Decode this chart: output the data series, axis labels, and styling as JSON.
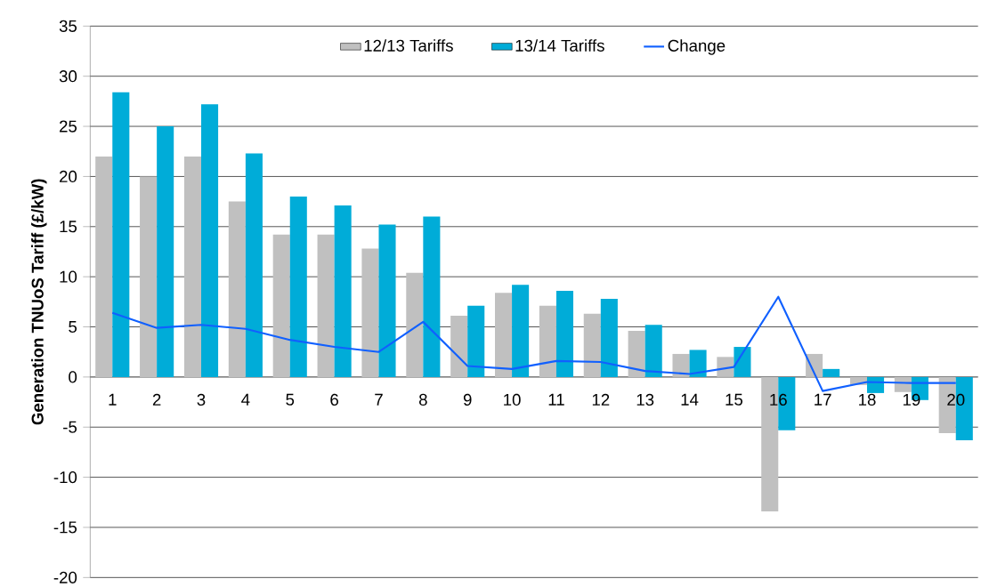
{
  "chart_data": {
    "type": "bar",
    "ylabel": "Generation TNUoS Tariff (£/kW)",
    "categories": [
      "1",
      "2",
      "3",
      "4",
      "5",
      "6",
      "7",
      "8",
      "9",
      "10",
      "11",
      "12",
      "13",
      "14",
      "15",
      "16",
      "17",
      "18",
      "19",
      "20"
    ],
    "series": [
      {
        "name": "12/13 Tariffs",
        "color": "#c0c0c0",
        "values": [
          22,
          20,
          22,
          17.5,
          14.2,
          14.2,
          12.8,
          10.4,
          6.1,
          8.4,
          7.1,
          6.3,
          4.6,
          2.3,
          2.0,
          -13.4,
          2.3,
          -0.8,
          -1.5,
          -5.6
        ]
      },
      {
        "name": "13/14 Tariffs",
        "color": "#00acd8",
        "values": [
          28.4,
          25,
          27.2,
          22.3,
          18,
          17.1,
          15.2,
          16,
          7.1,
          9.2,
          8.6,
          7.8,
          5.2,
          2.7,
          3.0,
          -5.3,
          0.8,
          -1.6,
          -2.3,
          -6.3
        ]
      },
      {
        "name": "Change",
        "type": "line",
        "color": "#1060ff",
        "values": [
          6.4,
          4.9,
          5.2,
          4.8,
          3.7,
          3.0,
          2.5,
          5.5,
          1.1,
          0.8,
          1.6,
          1.5,
          0.6,
          0.3,
          1.0,
          8.0,
          -1.4,
          -0.5,
          -0.6,
          -0.6
        ]
      }
    ],
    "ylim": [
      -20,
      35
    ],
    "yticks": [
      -20,
      -15,
      -10,
      -5,
      0,
      5,
      10,
      15,
      20,
      25,
      30,
      35
    ],
    "grid": "y",
    "legend": "top"
  }
}
